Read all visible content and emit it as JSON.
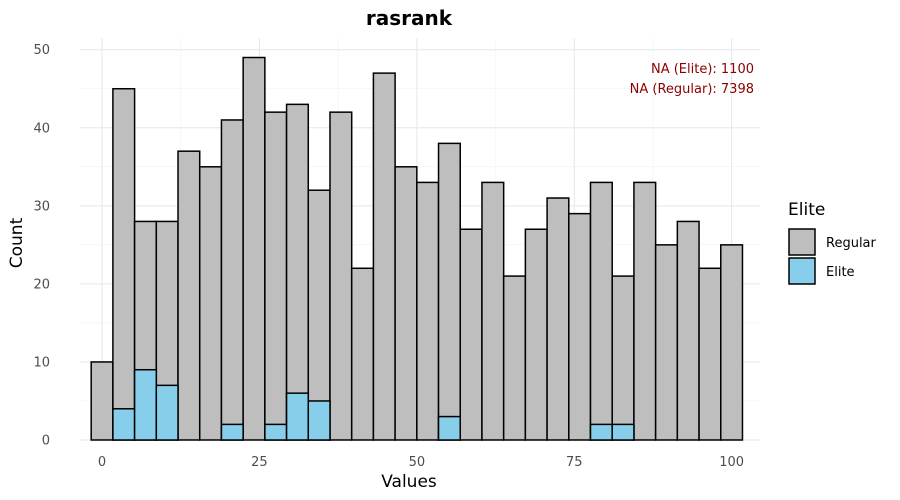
{
  "chart_data": {
    "type": "bar",
    "title": "rasrank",
    "xlabel": "Values",
    "ylabel": "Count",
    "xlim": [
      -3.5,
      104.5
    ],
    "ylim": [
      0,
      51.5
    ],
    "x_ticks": [
      0,
      25,
      50,
      75,
      100
    ],
    "y_ticks": [
      0,
      10,
      20,
      30,
      40,
      50
    ],
    "grid": true,
    "bin_width": 3.448,
    "bin_start": -1.724,
    "series": [
      {
        "name": "Regular",
        "color": "#bebebe",
        "values": [
          10,
          45,
          28,
          28,
          37,
          35,
          41,
          49,
          42,
          43,
          32,
          42,
          22,
          47,
          35,
          33,
          38,
          27,
          33,
          21,
          27,
          31,
          29,
          33,
          21,
          33,
          25,
          28,
          22,
          25
        ]
      },
      {
        "name": "Elite",
        "color": "#87ceeb",
        "values": [
          0,
          4,
          9,
          7,
          0,
          0,
          2,
          0,
          2,
          6,
          5,
          0,
          0,
          0,
          0,
          0,
          3,
          0,
          0,
          0,
          0,
          0,
          0,
          2,
          2,
          0,
          0,
          0,
          0,
          0
        ]
      }
    ],
    "legend": {
      "title": "Elite",
      "position": "right",
      "entries": [
        "Regular",
        "Elite"
      ]
    },
    "annotations": [
      "NA (Elite): 1100",
      "NA (Regular): 7398"
    ]
  }
}
